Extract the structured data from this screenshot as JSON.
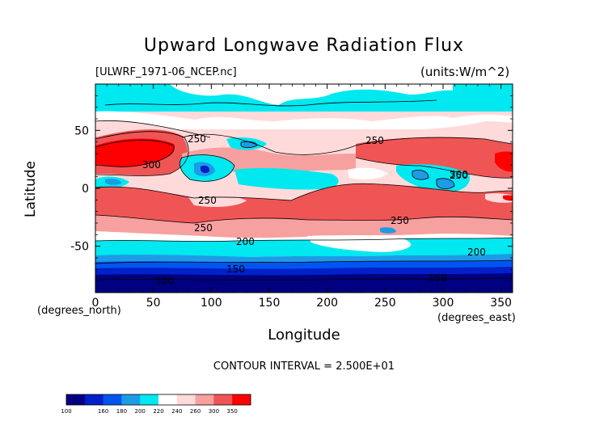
{
  "chart_data": {
    "type": "heatmap",
    "title": "Upward Longwave Radiation Flux",
    "source_label": "[ULWRF_1971-06_NCEP.nc]",
    "units_label": "(units:W/m^2)",
    "xlabel": "Longitude",
    "ylabel": "Latitude",
    "x_units": "(degrees_east)",
    "y_units": "(degrees_north)",
    "xlim": [
      0,
      360
    ],
    "ylim": [
      -90,
      90
    ],
    "x_ticks": [
      "0",
      "50",
      "100",
      "150",
      "200",
      "250",
      "300",
      "350"
    ],
    "y_ticks": [
      "-50",
      "0",
      "50"
    ],
    "contour_interval_text": "CONTOUR INTERVAL = 2.500E+01",
    "contour_labels": [
      "250",
      "300",
      "250",
      "250",
      "250",
      "200",
      "200",
      "250",
      "100",
      "150",
      "300",
      "250",
      "150"
    ],
    "colorbar": {
      "levels": [
        "100",
        "160",
        "180",
        "200",
        "220",
        "240",
        "260",
        "300",
        "350"
      ],
      "colors": [
        "#000080",
        "#0020c8",
        "#0055f0",
        "#1e9be6",
        "#00e8f0",
        "#ffffff",
        "#ffdada",
        "#f7a0a0",
        "#f05555",
        "#ff0000"
      ]
    }
  }
}
